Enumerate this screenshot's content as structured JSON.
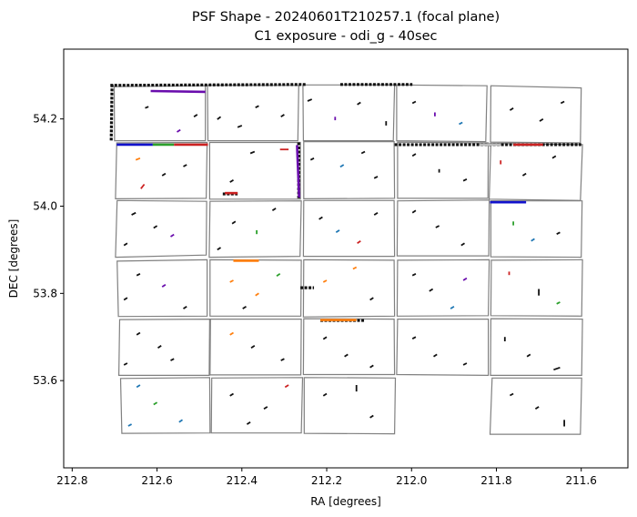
{
  "chart_data": {
    "type": "scatter",
    "title": "PSF Shape - 20240601T210257.1 (focal plane)",
    "subtitle": "C1 exposure - odi_g - 40sec",
    "xlabel": "RA [degrees]",
    "ylabel": "DEC [degrees]",
    "xlim": [
      212.82,
      211.49
    ],
    "ylim": [
      53.4,
      54.36
    ],
    "x_inverted": true,
    "xticks": [
      212.8,
      212.6,
      212.4,
      212.2,
      212.0,
      211.8,
      211.6
    ],
    "xtick_labels": [
      "212.8",
      "212.6",
      "212.4",
      "212.2",
      "212.0",
      "211.8",
      "211.6"
    ],
    "yticks": [
      53.6,
      53.8,
      54.0,
      54.2
    ],
    "ytick_labels": [
      "53.6",
      "53.8",
      "54.0",
      "54.2"
    ],
    "grid": false,
    "legend": "none",
    "ota_frames": [
      [
        212.701,
        54.274,
        212.486,
        54.276,
        212.486,
        54.15,
        212.7,
        54.15
      ],
      [
        212.481,
        54.277,
        212.266,
        54.277,
        212.268,
        54.15,
        212.48,
        54.15
      ],
      [
        212.256,
        54.278,
        212.04,
        54.278,
        212.043,
        54.15,
        212.255,
        54.15
      ],
      [
        212.035,
        54.278,
        211.822,
        54.276,
        211.825,
        54.148,
        212.035,
        54.15
      ],
      [
        211.813,
        54.276,
        211.6,
        54.271,
        211.602,
        54.145,
        211.814,
        54.147
      ],
      [
        212.695,
        54.145,
        212.482,
        54.146,
        212.484,
        54.018,
        212.698,
        54.017
      ],
      [
        212.476,
        54.146,
        212.262,
        54.146,
        212.262,
        54.016,
        212.476,
        54.016
      ],
      [
        212.254,
        54.148,
        212.041,
        54.148,
        212.04,
        54.018,
        212.254,
        54.017
      ],
      [
        212.033,
        54.147,
        211.819,
        54.145,
        211.82,
        54.018,
        212.033,
        54.018
      ],
      [
        211.813,
        54.144,
        211.597,
        54.141,
        211.602,
        54.013,
        211.817,
        54.016
      ],
      [
        212.694,
        54.013,
        212.483,
        54.011,
        212.484,
        53.888,
        212.698,
        53.883
      ],
      [
        212.475,
        54.011,
        212.26,
        54.012,
        212.263,
        53.885,
        212.477,
        53.883
      ],
      [
        212.254,
        54.013,
        212.041,
        54.013,
        212.04,
        53.885,
        212.255,
        53.885
      ],
      [
        212.033,
        54.012,
        211.817,
        54.014,
        211.818,
        53.886,
        212.034,
        53.886
      ],
      [
        211.813,
        54.012,
        211.598,
        54.012,
        211.6,
        53.883,
        211.813,
        53.884
      ],
      [
        212.694,
        53.874,
        212.482,
        53.877,
        212.482,
        53.748,
        212.691,
        53.747
      ],
      [
        212.475,
        53.877,
        212.26,
        53.876,
        212.261,
        53.748,
        212.475,
        53.748
      ],
      [
        212.254,
        53.877,
        212.041,
        53.876,
        212.04,
        53.748,
        212.255,
        53.746
      ],
      [
        212.033,
        53.876,
        211.817,
        53.877,
        211.819,
        53.749,
        212.034,
        53.748
      ],
      [
        211.812,
        53.876,
        211.597,
        53.877,
        211.599,
        53.748,
        211.813,
        53.749
      ],
      [
        212.688,
        53.74,
        212.476,
        53.741,
        212.477,
        53.612,
        212.69,
        53.612
      ],
      [
        212.474,
        53.741,
        212.26,
        53.741,
        212.261,
        53.613,
        212.475,
        53.613
      ],
      [
        212.254,
        53.742,
        212.041,
        53.741,
        212.04,
        53.614,
        212.255,
        53.614
      ],
      [
        212.033,
        53.741,
        211.819,
        53.741,
        211.819,
        53.612,
        212.035,
        53.614
      ],
      [
        211.813,
        53.742,
        211.597,
        53.741,
        211.599,
        53.612,
        211.814,
        53.612
      ],
      [
        212.686,
        53.605,
        212.476,
        53.607,
        212.475,
        53.48,
        212.683,
        53.479
      ],
      [
        212.471,
        53.606,
        212.257,
        53.607,
        212.26,
        53.48,
        212.472,
        53.48
      ],
      [
        212.253,
        53.607,
        212.038,
        53.606,
        212.04,
        53.478,
        212.253,
        53.479
      ],
      [
        211.81,
        53.606,
        211.599,
        53.606,
        211.602,
        53.477,
        211.815,
        53.477
      ]
    ],
    "edge_strips": [
      {
        "x1": 212.71,
        "y1": 54.277,
        "x2": 212.25,
        "y2": 54.279,
        "color": "#111111"
      },
      {
        "x1": 212.168,
        "y1": 54.279,
        "x2": 211.998,
        "y2": 54.279,
        "color": "#111111"
      },
      {
        "x1": 212.706,
        "y1": 54.279,
        "x2": 212.708,
        "y2": 54.15,
        "color": "#111111"
      },
      {
        "x1": 212.04,
        "y1": 54.141,
        "x2": 211.6,
        "y2": 54.141,
        "color": "#111111"
      },
      {
        "x1": 212.266,
        "y1": 54.146,
        "x2": 212.266,
        "y2": 54.018,
        "color": "#111111"
      },
      {
        "x1": 212.445,
        "y1": 54.028,
        "x2": 212.41,
        "y2": 54.028,
        "color": "#111111"
      },
      {
        "x1": 212.262,
        "y1": 53.813,
        "x2": 212.23,
        "y2": 53.813,
        "color": "#111111"
      },
      {
        "x1": 212.215,
        "y1": 53.738,
        "x2": 212.11,
        "y2": 53.738,
        "color": "#111111"
      }
    ],
    "edge_accents": [
      {
        "x1": 212.615,
        "y1": 54.264,
        "x2": 212.486,
        "y2": 54.262,
        "color": "#6a0dad"
      },
      {
        "x1": 212.695,
        "y1": 54.141,
        "x2": 212.61,
        "y2": 54.141,
        "color": "#1111cc"
      },
      {
        "x1": 212.61,
        "y1": 54.141,
        "x2": 212.56,
        "y2": 54.141,
        "color": "#2ca02c"
      },
      {
        "x1": 212.56,
        "y1": 54.141,
        "x2": 212.48,
        "y2": 54.141,
        "color": "#cc2222"
      },
      {
        "x1": 211.76,
        "y1": 54.141,
        "x2": 211.69,
        "y2": 54.141,
        "color": "#cc2222"
      },
      {
        "x1": 211.84,
        "y1": 54.141,
        "x2": 211.79,
        "y2": 54.141,
        "color": "#bbbbbb"
      },
      {
        "x1": 211.815,
        "y1": 54.009,
        "x2": 211.73,
        "y2": 54.009,
        "color": "#1111cc"
      },
      {
        "x1": 212.44,
        "y1": 54.03,
        "x2": 212.41,
        "y2": 54.03,
        "color": "#cc2222"
      },
      {
        "x1": 212.27,
        "y1": 54.14,
        "x2": 212.265,
        "y2": 54.02,
        "color": "#6a0dad"
      },
      {
        "x1": 212.215,
        "y1": 53.739,
        "x2": 212.13,
        "y2": 53.739,
        "color": "#ff7f0e"
      },
      {
        "x1": 212.42,
        "y1": 53.875,
        "x2": 212.36,
        "y2": 53.875,
        "color": "#ff7f0e"
      }
    ],
    "psf_sticks": [
      [
        212.62,
        54.228,
        212.628,
        54.225,
        "#111111"
      ],
      [
        212.505,
        54.21,
        212.513,
        54.205,
        "#111111"
      ],
      [
        212.545,
        54.175,
        212.553,
        54.17,
        "#6a0dad"
      ],
      [
        212.45,
        54.205,
        212.458,
        54.199,
        "#111111"
      ],
      [
        212.4,
        54.185,
        212.41,
        54.181,
        "#111111"
      ],
      [
        212.36,
        54.23,
        212.368,
        54.226,
        "#111111"
      ],
      [
        212.3,
        54.21,
        212.308,
        54.205,
        "#111111"
      ],
      [
        212.235,
        54.245,
        212.245,
        54.241,
        "#111111"
      ],
      [
        212.18,
        54.205,
        212.18,
        54.197,
        "#6a0dad"
      ],
      [
        212.12,
        54.238,
        212.128,
        54.233,
        "#111111"
      ],
      [
        212.06,
        54.195,
        212.06,
        54.185,
        "#111111"
      ],
      [
        211.99,
        54.24,
        211.998,
        54.236,
        "#111111"
      ],
      [
        211.945,
        54.215,
        211.945,
        54.206,
        "#6a0dad"
      ],
      [
        211.88,
        54.192,
        211.888,
        54.188,
        "#1f77b4"
      ],
      [
        211.76,
        54.225,
        211.768,
        54.22,
        "#111111"
      ],
      [
        211.69,
        54.2,
        211.698,
        54.195,
        "#111111"
      ],
      [
        211.64,
        54.24,
        211.648,
        54.236,
        "#111111"
      ],
      [
        212.64,
        54.11,
        212.65,
        54.106,
        "#ff7f0e"
      ],
      [
        212.58,
        54.075,
        212.588,
        54.07,
        "#111111"
      ],
      [
        212.63,
        54.05,
        212.638,
        54.04,
        "#cc2222"
      ],
      [
        212.53,
        54.095,
        212.538,
        54.091,
        "#111111"
      ],
      [
        212.37,
        54.125,
        212.38,
        54.121,
        "#111111"
      ],
      [
        212.31,
        54.13,
        212.29,
        54.13,
        "#cc2222"
      ],
      [
        212.42,
        54.06,
        212.428,
        54.055,
        "#111111"
      ],
      [
        212.23,
        54.11,
        212.238,
        54.106,
        "#111111"
      ],
      [
        212.16,
        54.095,
        212.168,
        54.09,
        "#1f77b4"
      ],
      [
        212.11,
        54.125,
        212.118,
        54.121,
        "#111111"
      ],
      [
        212.08,
        54.068,
        212.088,
        54.064,
        "#111111"
      ],
      [
        211.99,
        54.12,
        211.998,
        54.115,
        "#111111"
      ],
      [
        211.935,
        54.085,
        211.935,
        54.077,
        "#111111"
      ],
      [
        211.87,
        54.062,
        211.878,
        54.058,
        "#111111"
      ],
      [
        211.79,
        54.105,
        211.79,
        54.096,
        "#cc2222"
      ],
      [
        211.73,
        54.075,
        211.738,
        54.07,
        "#111111"
      ],
      [
        211.66,
        54.115,
        211.668,
        54.11,
        "#111111"
      ],
      [
        212.65,
        53.985,
        212.66,
        53.98,
        "#111111"
      ],
      [
        212.6,
        53.955,
        212.608,
        53.95,
        "#111111"
      ],
      [
        212.56,
        53.935,
        212.568,
        53.93,
        "#6a0dad"
      ],
      [
        212.67,
        53.915,
        212.678,
        53.91,
        "#111111"
      ],
      [
        212.415,
        53.965,
        212.423,
        53.96,
        "#111111"
      ],
      [
        212.365,
        53.945,
        212.365,
        53.936,
        "#2ca02c"
      ],
      [
        212.32,
        53.995,
        212.328,
        53.99,
        "#111111"
      ],
      [
        212.45,
        53.905,
        212.458,
        53.9,
        "#111111"
      ],
      [
        212.21,
        53.975,
        212.218,
        53.97,
        "#111111"
      ],
      [
        212.17,
        53.945,
        212.178,
        53.94,
        "#1f77b4"
      ],
      [
        212.12,
        53.92,
        212.128,
        53.915,
        "#cc2222"
      ],
      [
        212.08,
        53.985,
        212.088,
        53.98,
        "#111111"
      ],
      [
        211.99,
        53.99,
        211.998,
        53.985,
        "#111111"
      ],
      [
        211.935,
        53.955,
        211.943,
        53.951,
        "#111111"
      ],
      [
        211.875,
        53.915,
        211.883,
        53.91,
        "#111111"
      ],
      [
        211.76,
        53.965,
        211.76,
        53.956,
        "#2ca02c"
      ],
      [
        211.71,
        53.925,
        211.718,
        53.92,
        "#1f77b4"
      ],
      [
        211.65,
        53.94,
        211.658,
        53.936,
        "#111111"
      ],
      [
        212.64,
        53.845,
        212.648,
        53.841,
        "#111111"
      ],
      [
        212.58,
        53.82,
        212.588,
        53.815,
        "#6a0dad"
      ],
      [
        212.67,
        53.79,
        212.678,
        53.785,
        "#111111"
      ],
      [
        212.53,
        53.77,
        212.538,
        53.765,
        "#111111"
      ],
      [
        212.42,
        53.83,
        212.428,
        53.826,
        "#ff7f0e"
      ],
      [
        212.36,
        53.8,
        212.368,
        53.795,
        "#ff7f0e"
      ],
      [
        212.31,
        53.845,
        212.318,
        53.84,
        "#2ca02c"
      ],
      [
        212.39,
        53.77,
        212.398,
        53.765,
        "#111111"
      ],
      [
        212.2,
        53.83,
        212.208,
        53.826,
        "#ff7f0e"
      ],
      [
        212.13,
        53.86,
        212.138,
        53.856,
        "#ff7f0e"
      ],
      [
        212.09,
        53.79,
        212.098,
        53.785,
        "#111111"
      ],
      [
        211.99,
        53.845,
        211.998,
        53.841,
        "#111111"
      ],
      [
        211.95,
        53.81,
        211.958,
        53.805,
        "#111111"
      ],
      [
        211.9,
        53.77,
        211.908,
        53.765,
        "#1f77b4"
      ],
      [
        211.87,
        53.835,
        211.878,
        53.83,
        "#6a0dad"
      ],
      [
        211.77,
        53.85,
        211.77,
        53.842,
        "#cc2222"
      ],
      [
        211.7,
        53.81,
        211.7,
        53.795,
        "#111111"
      ],
      [
        211.65,
        53.78,
        211.658,
        53.776,
        "#2ca02c"
      ],
      [
        212.64,
        53.71,
        212.648,
        53.705,
        "#111111"
      ],
      [
        212.59,
        53.68,
        212.598,
        53.675,
        "#111111"
      ],
      [
        212.56,
        53.65,
        212.568,
        53.646,
        "#111111"
      ],
      [
        212.67,
        53.64,
        212.678,
        53.636,
        "#111111"
      ],
      [
        212.42,
        53.71,
        212.428,
        53.705,
        "#ff7f0e"
      ],
      [
        212.37,
        53.68,
        212.378,
        53.675,
        "#111111"
      ],
      [
        212.3,
        53.65,
        212.308,
        53.646,
        "#111111"
      ],
      [
        212.2,
        53.7,
        212.208,
        53.695,
        "#111111"
      ],
      [
        212.15,
        53.66,
        212.158,
        53.655,
        "#111111"
      ],
      [
        212.09,
        53.635,
        212.098,
        53.63,
        "#111111"
      ],
      [
        211.99,
        53.7,
        211.998,
        53.696,
        "#111111"
      ],
      [
        211.94,
        53.66,
        211.948,
        53.655,
        "#111111"
      ],
      [
        211.87,
        53.64,
        211.878,
        53.636,
        "#111111"
      ],
      [
        211.78,
        53.7,
        211.78,
        53.69,
        "#111111"
      ],
      [
        211.72,
        53.66,
        211.728,
        53.655,
        "#111111"
      ],
      [
        211.65,
        53.63,
        211.665,
        53.625,
        "#111111"
      ],
      [
        212.64,
        53.59,
        212.648,
        53.585,
        "#1f77b4"
      ],
      [
        212.6,
        53.55,
        212.608,
        53.545,
        "#2ca02c"
      ],
      [
        212.66,
        53.5,
        212.668,
        53.496,
        "#1f77b4"
      ],
      [
        212.54,
        53.51,
        212.548,
        53.505,
        "#1f77b4"
      ],
      [
        212.42,
        53.57,
        212.428,
        53.565,
        "#111111"
      ],
      [
        212.34,
        53.54,
        212.348,
        53.535,
        "#111111"
      ],
      [
        212.29,
        53.59,
        212.298,
        53.585,
        "#cc2222"
      ],
      [
        212.38,
        53.505,
        212.388,
        53.5,
        "#111111"
      ],
      [
        212.2,
        53.57,
        212.208,
        53.565,
        "#111111"
      ],
      [
        212.13,
        53.59,
        212.13,
        53.575,
        "#111111"
      ],
      [
        212.09,
        53.52,
        212.098,
        53.515,
        "#111111"
      ],
      [
        211.76,
        53.57,
        211.768,
        53.566,
        "#111111"
      ],
      [
        211.7,
        53.54,
        211.708,
        53.535,
        "#111111"
      ],
      [
        211.64,
        53.51,
        211.64,
        53.495,
        "#111111"
      ]
    ]
  }
}
